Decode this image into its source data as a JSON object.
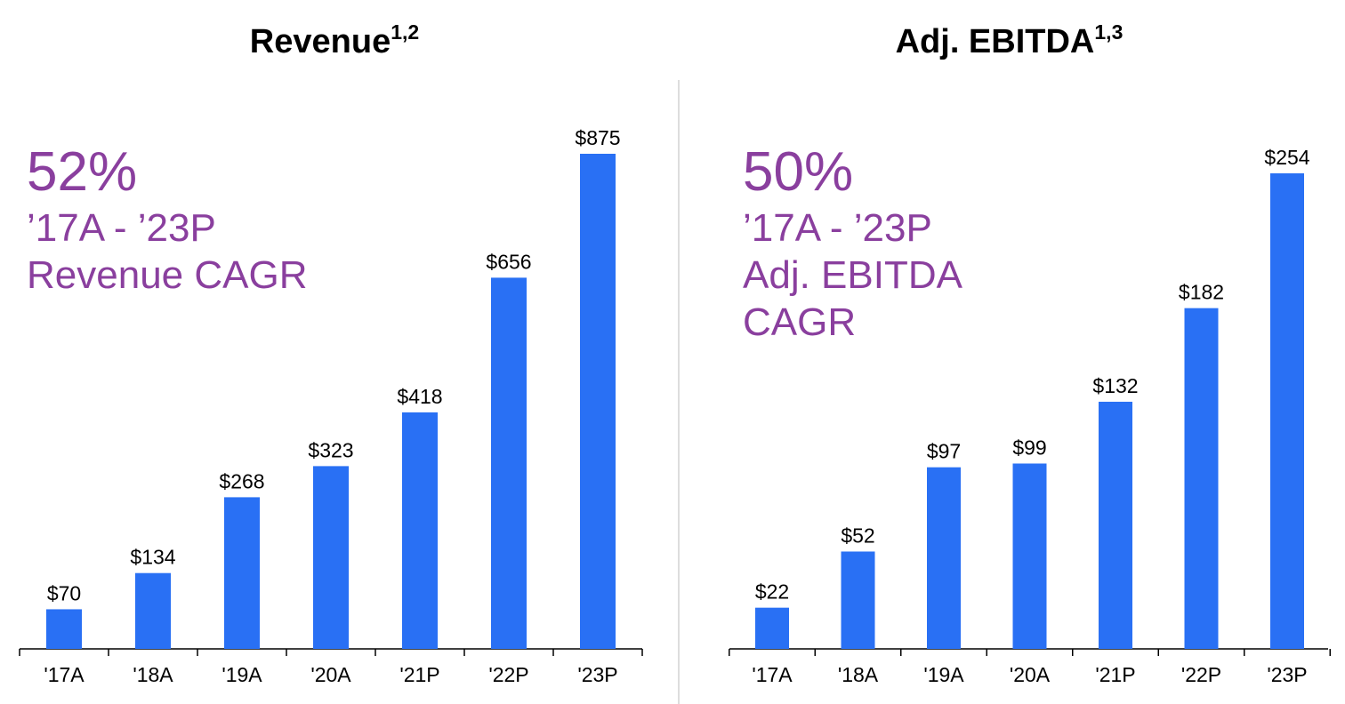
{
  "colors": {
    "bar": "#2970F4",
    "accent": "#8A3F9E",
    "axis": "#000000"
  },
  "chart_data": [
    {
      "type": "bar",
      "title": "Revenue",
      "title_superscript": "1,2",
      "categories": [
        "'17A",
        "'18A",
        "'19A",
        "'20A",
        "'21P",
        "'22P",
        "'23P"
      ],
      "values": [
        70,
        134,
        268,
        323,
        418,
        656,
        875
      ],
      "value_labels": [
        "$70",
        "$134",
        "$268",
        "$323",
        "$418",
        "$656",
        "$875"
      ],
      "ylim": [
        0,
        875
      ],
      "grid": false,
      "legend": "none",
      "cagr": {
        "percent": "52%",
        "lines": [
          "’17A - ’23P",
          "Revenue CAGR"
        ]
      }
    },
    {
      "type": "bar",
      "title": "Adj. EBITDA",
      "title_superscript": "1,3",
      "categories": [
        "'17A",
        "'18A",
        "'19A",
        "'20A",
        "'21P",
        "'22P",
        "'23P"
      ],
      "values": [
        22,
        52,
        97,
        99,
        132,
        182,
        254
      ],
      "value_labels": [
        "$22",
        "$52",
        "$97",
        "$99",
        "$132",
        "$182",
        "$254"
      ],
      "ylim": [
        0,
        254
      ],
      "grid": false,
      "legend": "none",
      "cagr": {
        "percent": "50%",
        "lines": [
          "’17A - ’23P",
          "Adj. EBITDA",
          "CAGR"
        ]
      }
    }
  ]
}
